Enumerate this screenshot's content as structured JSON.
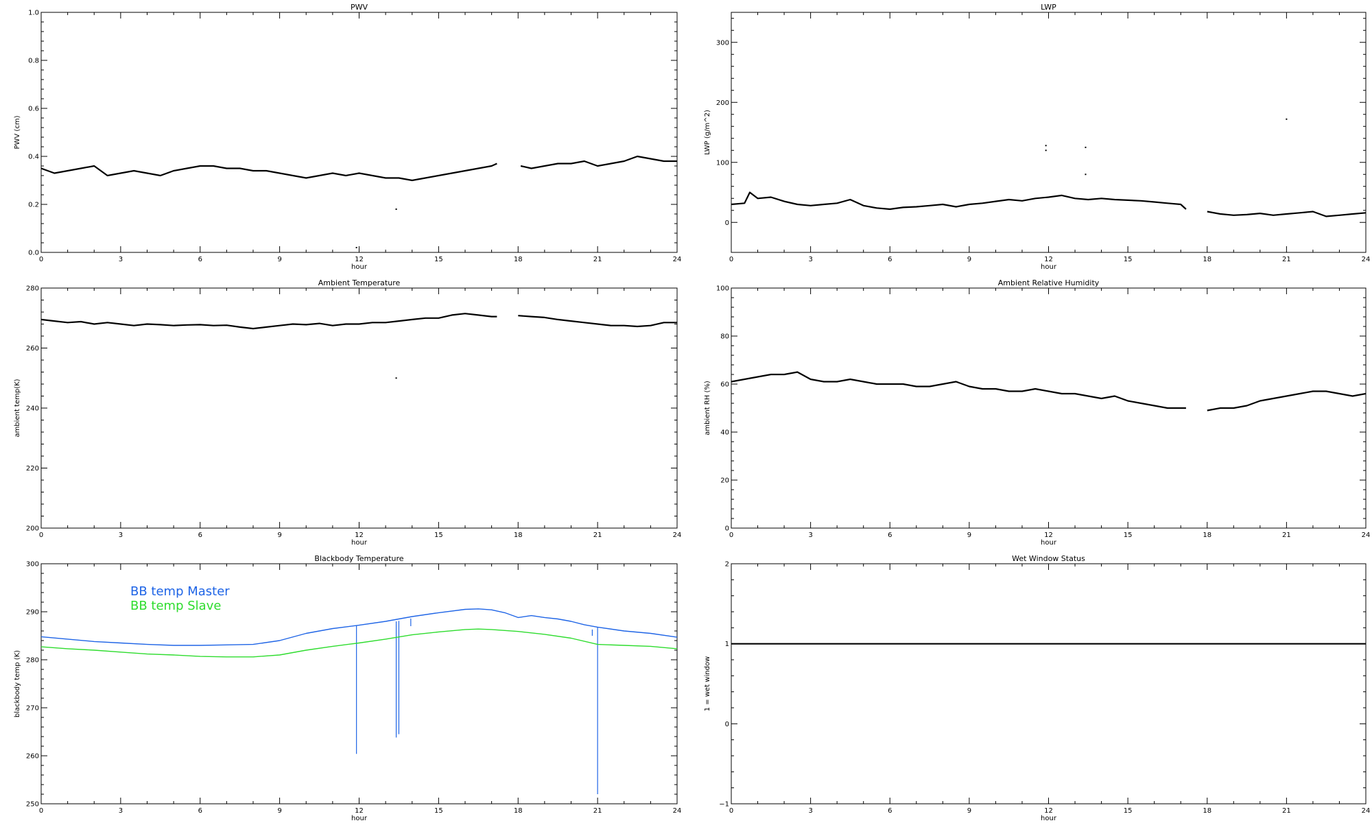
{
  "chart_data": [
    {
      "type": "line",
      "title": "PWV",
      "xlabel": "hour",
      "ylabel": "PWV (cm)",
      "xlim": [
        0,
        24
      ],
      "ylim": [
        0.0,
        1.0
      ],
      "xticks": [
        0,
        3,
        6,
        9,
        12,
        15,
        18,
        21,
        24
      ],
      "yticks": [
        0.0,
        0.2,
        0.4,
        0.6,
        0.8,
        1.0
      ],
      "ytick_labels": [
        "0.0",
        "0.2",
        "0.4",
        "0.6",
        "0.8",
        "1.0"
      ],
      "grid": false,
      "series": [
        {
          "color": "#000000",
          "segments": [
            {
              "x": [
                0,
                0.5,
                1,
                1.5,
                2,
                2.5,
                3,
                3.5,
                4,
                4.5,
                5,
                5.5,
                6,
                6.5,
                7,
                7.5,
                8,
                8.5,
                9,
                9.5,
                10,
                10.5,
                11,
                11.5,
                12,
                12.5,
                13,
                13.5,
                14,
                14.5,
                15,
                15.5,
                16,
                16.5,
                17,
                17.2
              ],
              "y": [
                0.35,
                0.33,
                0.34,
                0.35,
                0.36,
                0.32,
                0.33,
                0.34,
                0.33,
                0.32,
                0.34,
                0.35,
                0.36,
                0.36,
                0.35,
                0.35,
                0.34,
                0.34,
                0.33,
                0.32,
                0.31,
                0.32,
                0.33,
                0.32,
                0.33,
                0.32,
                0.31,
                0.31,
                0.3,
                0.31,
                0.32,
                0.33,
                0.34,
                0.35,
                0.36,
                0.37
              ]
            },
            {
              "x": [
                18.1,
                18.5,
                19,
                19.5,
                20,
                20.5,
                21,
                21.5,
                22,
                22.5,
                23,
                23.5,
                24
              ],
              "y": [
                0.36,
                0.35,
                0.36,
                0.37,
                0.37,
                0.38,
                0.36,
                0.37,
                0.38,
                0.4,
                0.39,
                0.38,
                0.38
              ]
            }
          ]
        }
      ],
      "outliers": [
        {
          "x": [
            13.4,
            11.9
          ],
          "y": [
            0.18,
            0.02
          ]
        }
      ]
    },
    {
      "type": "line",
      "title": "LWP",
      "xlabel": "hour",
      "ylabel": "LWP (g/m^2)",
      "xlim": [
        0,
        24
      ],
      "ylim": [
        -50,
        350
      ],
      "xticks": [
        0,
        3,
        6,
        9,
        12,
        15,
        18,
        21,
        24
      ],
      "yticks": [
        0,
        100,
        200,
        300
      ],
      "ytick_labels": [
        "0",
        "100",
        "200",
        "300"
      ],
      "grid": false,
      "series": [
        {
          "color": "#000000",
          "segments": [
            {
              "x": [
                0,
                0.5,
                0.7,
                1,
                1.5,
                2,
                2.5,
                3,
                3.5,
                4,
                4.5,
                5,
                5.5,
                6,
                6.5,
                7,
                7.5,
                8,
                8.5,
                9,
                9.5,
                10,
                10.5,
                11,
                11.5,
                12,
                12.5,
                13,
                13.5,
                14,
                14.5,
                15,
                15.5,
                16,
                16.5,
                17,
                17.2
              ],
              "y": [
                30,
                32,
                50,
                40,
                42,
                35,
                30,
                28,
                30,
                32,
                38,
                28,
                24,
                22,
                25,
                26,
                28,
                30,
                26,
                30,
                32,
                35,
                38,
                36,
                40,
                42,
                45,
                40,
                38,
                40,
                38,
                37,
                36,
                34,
                32,
                30,
                22
              ]
            },
            {
              "x": [
                18,
                18.5,
                19,
                19.5,
                20,
                20.5,
                21,
                21.5,
                22,
                22.5,
                23,
                23.5,
                24
              ],
              "y": [
                18,
                14,
                12,
                13,
                15,
                12,
                14,
                16,
                18,
                10,
                12,
                14,
                16
              ]
            }
          ]
        }
      ],
      "outliers": [
        {
          "x": [
            11.9,
            11.9,
            13.4,
            13.4,
            21.0
          ],
          "y": [
            128,
            120,
            125,
            80,
            172
          ]
        }
      ]
    },
    {
      "type": "line",
      "title": "Ambient Temperature",
      "xlabel": "hour",
      "ylabel": "ambient temp(K)",
      "xlim": [
        0,
        24
      ],
      "ylim": [
        200,
        280
      ],
      "xticks": [
        0,
        3,
        6,
        9,
        12,
        15,
        18,
        21,
        24
      ],
      "yticks": [
        200,
        220,
        240,
        260,
        280
      ],
      "ytick_labels": [
        "200",
        "220",
        "240",
        "260",
        "280"
      ],
      "grid": false,
      "series": [
        {
          "color": "#000000",
          "segments": [
            {
              "x": [
                0,
                0.5,
                1,
                1.5,
                2,
                2.5,
                3,
                3.5,
                4,
                4.5,
                5,
                5.5,
                6,
                6.5,
                7,
                7.5,
                8,
                8.5,
                9,
                9.5,
                10,
                10.5,
                11,
                11.5,
                12,
                12.5,
                13,
                13.5,
                14,
                14.5,
                15,
                15.5,
                16,
                16.5,
                17,
                17.2
              ],
              "y": [
                269.5,
                269.0,
                268.5,
                268.8,
                268.0,
                268.5,
                268.0,
                267.5,
                268.0,
                267.8,
                267.5,
                267.7,
                267.8,
                267.5,
                267.6,
                267.0,
                266.5,
                267.0,
                267.5,
                268.0,
                267.8,
                268.2,
                267.5,
                268.0,
                268.0,
                268.5,
                268.5,
                269.0,
                269.5,
                270.0,
                270.0,
                271.0,
                271.5,
                271.0,
                270.5,
                270.5
              ]
            },
            {
              "x": [
                18,
                18.5,
                19,
                19.5,
                20,
                20.5,
                21,
                21.5,
                22,
                22.5,
                23,
                23.5,
                24
              ],
              "y": [
                270.8,
                270.5,
                270.2,
                269.5,
                269.0,
                268.5,
                268.0,
                267.5,
                267.5,
                267.2,
                267.5,
                268.5,
                268.5
              ]
            }
          ]
        }
      ],
      "outliers": [
        {
          "x": [
            13.4
          ],
          "y": [
            250
          ]
        }
      ]
    },
    {
      "type": "line",
      "title": "Ambient Relative Humidity",
      "xlabel": "hour",
      "ylabel": "ambient RH (%)",
      "xlim": [
        0,
        24
      ],
      "ylim": [
        0,
        100
      ],
      "xticks": [
        0,
        3,
        6,
        9,
        12,
        15,
        18,
        21,
        24
      ],
      "yticks": [
        0,
        20,
        40,
        60,
        80,
        100
      ],
      "ytick_labels": [
        "0",
        "20",
        "40",
        "60",
        "80",
        "100"
      ],
      "grid": false,
      "series": [
        {
          "color": "#000000",
          "segments": [
            {
              "x": [
                0,
                0.5,
                1,
                1.5,
                2,
                2.5,
                3,
                3.5,
                4,
                4.5,
                5,
                5.5,
                6,
                6.5,
                7,
                7.5,
                8,
                8.5,
                9,
                9.5,
                10,
                10.5,
                11,
                11.5,
                12,
                12.5,
                13,
                13.5,
                14,
                14.5,
                15,
                15.5,
                16,
                16.5,
                17,
                17.2
              ],
              "y": [
                61,
                62,
                63,
                64,
                64,
                65,
                62,
                61,
                61,
                62,
                61,
                60,
                60,
                60,
                59,
                59,
                60,
                61,
                59,
                58,
                58,
                57,
                57,
                58,
                57,
                56,
                56,
                55,
                54,
                55,
                53,
                52,
                51,
                50,
                50,
                50
              ]
            },
            {
              "x": [
                18,
                18.5,
                19,
                19.5,
                20,
                20.5,
                21,
                21.5,
                22,
                22.5,
                23,
                23.5,
                24
              ],
              "y": [
                49,
                50,
                50,
                51,
                53,
                54,
                55,
                56,
                57,
                57,
                56,
                55,
                56
              ]
            }
          ]
        }
      ]
    },
    {
      "type": "line",
      "title": "Blackbody Temperature",
      "xlabel": "hour",
      "ylabel": "blackbody temp (K)",
      "xlim": [
        0,
        24
      ],
      "ylim": [
        250,
        300
      ],
      "xticks": [
        0,
        3,
        6,
        9,
        12,
        15,
        18,
        21,
        24
      ],
      "yticks": [
        250,
        260,
        270,
        280,
        290,
        300
      ],
      "ytick_labels": [
        "250",
        "260",
        "270",
        "280",
        "290",
        "300"
      ],
      "grid": false,
      "legend": "top-left",
      "series": [
        {
          "name": "BB temp Master",
          "color": "#1e64e6",
          "segments": [
            {
              "x": [
                0,
                1,
                2,
                3,
                4,
                5,
                6,
                7,
                8,
                9,
                10,
                11,
                12,
                13,
                14,
                15,
                16,
                16.5,
                17,
                17.5,
                18,
                18.5,
                19,
                19.5,
                20,
                20.5,
                21,
                22,
                23,
                24
              ],
              "y": [
                284.8,
                284.3,
                283.8,
                283.5,
                283.2,
                283.0,
                283.0,
                283.1,
                283.2,
                284.0,
                285.5,
                286.5,
                287.2,
                288.0,
                289.0,
                289.8,
                290.5,
                290.6,
                290.4,
                289.8,
                288.8,
                289.2,
                288.8,
                288.5,
                288.0,
                287.3,
                286.8,
                286.0,
                285.5,
                284.7
              ]
            }
          ],
          "spikes": [
            {
              "x": 11.9,
              "base": 287.1,
              "y": 260.4
            },
            {
              "x": 13.4,
              "base": 288.0,
              "y": 263.8
            },
            {
              "x": 13.5,
              "base": 288.1,
              "y": 264.5
            },
            {
              "x": 13.95,
              "base": 288.6,
              "y": 287.0
            },
            {
              "x": 20.8,
              "base": 286.3,
              "y": 285.0
            },
            {
              "x": 21.0,
              "base": 286.8,
              "y": 252.0
            }
          ]
        },
        {
          "name": "BB temp Slave",
          "color": "#2ddc2d",
          "segments": [
            {
              "x": [
                0,
                1,
                2,
                3,
                4,
                5,
                6,
                7,
                8,
                9,
                10,
                11,
                12,
                13,
                14,
                15,
                16,
                16.5,
                17,
                18,
                19,
                20,
                21,
                22,
                23,
                24
              ],
              "y": [
                282.7,
                282.3,
                282.0,
                281.6,
                281.2,
                281.0,
                280.7,
                280.6,
                280.6,
                281.0,
                282.0,
                282.8,
                283.5,
                284.3,
                285.2,
                285.8,
                286.3,
                286.4,
                286.3,
                285.9,
                285.3,
                284.5,
                283.2,
                283.0,
                282.8,
                282.3
              ]
            }
          ]
        }
      ]
    },
    {
      "type": "line",
      "title": "Wet Window Status",
      "xlabel": "hour",
      "ylabel": "1 = wet window",
      "xlim": [
        0,
        24
      ],
      "ylim": [
        -1,
        2
      ],
      "xticks": [
        0,
        3,
        6,
        9,
        12,
        15,
        18,
        21,
        24
      ],
      "yticks": [
        -1,
        0,
        1,
        2
      ],
      "ytick_labels": [
        "−1",
        "0",
        "1",
        "2"
      ],
      "grid": false,
      "series": [
        {
          "color": "#000000",
          "segments": [
            {
              "x": [
                0,
                24
              ],
              "y": [
                1,
                1
              ]
            }
          ]
        }
      ]
    }
  ]
}
